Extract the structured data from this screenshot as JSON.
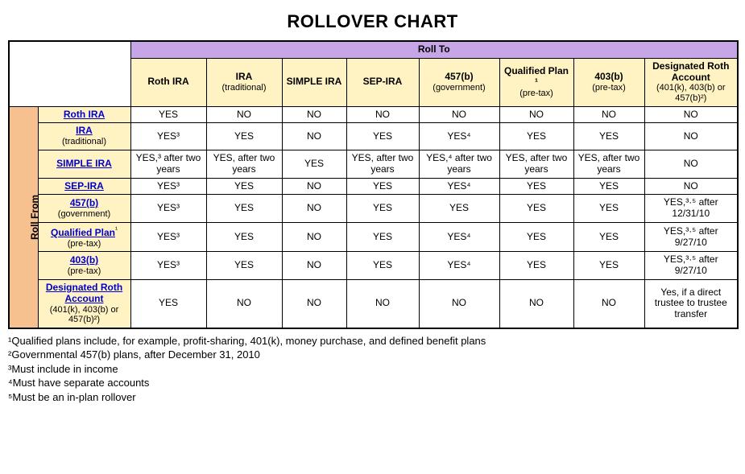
{
  "title": "ROLLOVER CHART",
  "headers": {
    "rollTo": "Roll To",
    "rollFrom": "Roll From",
    "cols": [
      {
        "main": "Roth IRA",
        "sub": ""
      },
      {
        "main": "IRA",
        "sub": "(traditional)"
      },
      {
        "main": "SIMPLE IRA",
        "sub": ""
      },
      {
        "main": "SEP-IRA",
        "sub": ""
      },
      {
        "main": "457(b)",
        "sub": "(government)"
      },
      {
        "main": "Qualified Plan ¹",
        "sub": "(pre-tax)"
      },
      {
        "main": "403(b)",
        "sub": "(pre-tax)"
      },
      {
        "main": "Designated Roth Account",
        "sub": "(401(k), 403(b) or 457(b)²)"
      }
    ]
  },
  "rows": [
    {
      "header": {
        "link": "Roth IRA",
        "sub": ""
      },
      "cells": [
        "YES",
        "NO",
        "NO",
        "NO",
        "NO",
        "NO",
        "NO",
        "NO"
      ]
    },
    {
      "header": {
        "link": "IRA",
        "sub": "(traditional)"
      },
      "cells": [
        "YES³",
        "YES",
        "NO",
        "YES",
        "YES⁴",
        "YES",
        "YES",
        "NO"
      ]
    },
    {
      "header": {
        "link": "SIMPLE IRA",
        "sub": ""
      },
      "cells": [
        "YES,³ after two years",
        "YES, after two years",
        "YES",
        "YES, after two years",
        "YES,⁴ after two years",
        "YES, after two years",
        "YES, after two years",
        "NO"
      ]
    },
    {
      "header": {
        "link": "SEP-IRA",
        "sub": ""
      },
      "cells": [
        "YES³",
        "YES",
        "NO",
        "YES",
        "YES⁴",
        "YES",
        "YES",
        "NO"
      ]
    },
    {
      "header": {
        "link": "457(b)",
        "sub": "(government)"
      },
      "cells": [
        "YES³",
        "YES",
        "NO",
        "YES",
        "YES",
        "YES",
        "YES",
        "YES,³·⁵ after 12/31/10"
      ]
    },
    {
      "header": {
        "link": "Qualified Plan",
        "linkSup": "¹",
        "sub": "(pre-tax)"
      },
      "cells": [
        "YES³",
        "YES",
        "NO",
        "YES",
        "YES⁴",
        "YES",
        "YES",
        "YES,³·⁵ after 9/27/10"
      ]
    },
    {
      "header": {
        "link": "403(b)",
        "sub": "(pre-tax)"
      },
      "cells": [
        "YES³",
        "YES",
        "NO",
        "YES",
        "YES⁴",
        "YES",
        "YES",
        "YES,³·⁵ after 9/27/10"
      ]
    },
    {
      "header": {
        "link": "Designated Roth Account",
        "sub": "(401(k), 403(b) or 457(b)²)"
      },
      "cells": [
        "YES",
        "NO",
        "NO",
        "NO",
        "NO",
        "NO",
        "NO",
        "Yes, if a direct trustee to trustee transfer"
      ]
    }
  ],
  "footnotes": [
    "¹Qualified plans include, for example, profit-sharing, 401(k), money purchase, and defined benefit plans",
    "²Governmental 457(b) plans, after December 31, 2010",
    "³Must include in income",
    "⁴Must have separate accounts",
    "⁵Must be an in-plan rollover"
  ],
  "style": {
    "colors": {
      "rollToHeader": "#c6a6e6",
      "colHeader": "#fff3c4",
      "rowHeader": "#fff3c4",
      "rollFromHeader": "#f6c08f",
      "link": "#0000cc",
      "border": "#000000",
      "background": "#ffffff"
    },
    "titleFontSize": 22,
    "headerFontSize": 18,
    "cellFontSize": 12,
    "colWidths": {
      "rollFrom": 36,
      "rowHeader": 115,
      "dataCol": 94
    }
  }
}
